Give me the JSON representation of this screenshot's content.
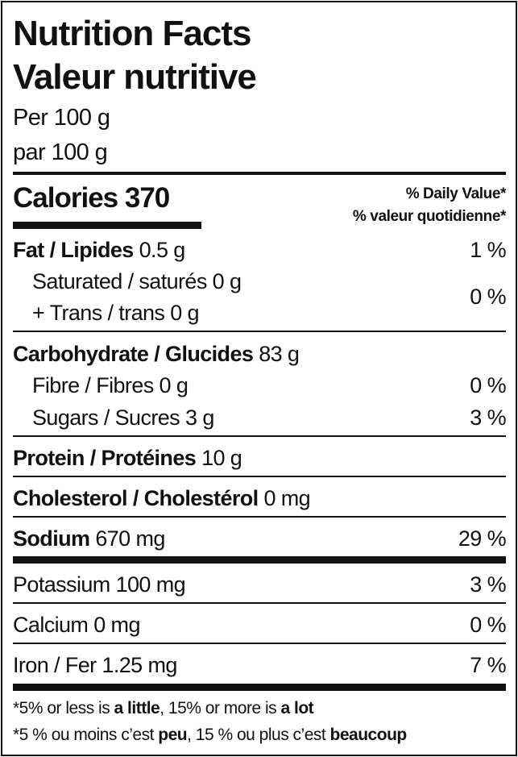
{
  "title_en": "Nutrition Facts",
  "title_fr": "Valeur nutritive",
  "serving_en": "Per 100 g",
  "serving_fr": "par 100 g",
  "calories_label": "Calories",
  "calories_value": "370",
  "dv_en": "% Daily Value*",
  "dv_fr": "% valeur quotidienne*",
  "rows": {
    "fat": {
      "label": "Fat / Lipides",
      "amount": "0.5 g",
      "dv": "1 %"
    },
    "saturated": {
      "label": "Saturated / saturés",
      "amount": "0 g"
    },
    "trans": {
      "label": "+ Trans / trans",
      "amount": "0 g",
      "dv": "0 %"
    },
    "carb": {
      "label": "Carbohydrate / Glucides",
      "amount": "83 g"
    },
    "fibre": {
      "label": "Fibre / Fibres",
      "amount": "0 g",
      "dv": "0 %"
    },
    "sugars": {
      "label": "Sugars / Sucres",
      "amount": "3 g",
      "dv": "3 %"
    },
    "protein": {
      "label": "Protein / Protéines",
      "amount": "10 g"
    },
    "cholesterol": {
      "label": "Cholesterol / Cholestérol",
      "amount": "0 mg"
    },
    "sodium": {
      "label": "Sodium",
      "amount": "670 mg",
      "dv": "29 %"
    },
    "potassium": {
      "label": "Potassium",
      "amount": "100 mg",
      "dv": "3 %"
    },
    "calcium": {
      "label": "Calcium",
      "amount": "0 mg",
      "dv": "0 %"
    },
    "iron": {
      "label": "Iron / Fer",
      "amount": "1.25 mg",
      "dv": "7 %"
    }
  },
  "footnote_en": {
    "a": "*5% or less is ",
    "b": "a little",
    "c": ", 15% or more is ",
    "d": "a lot"
  },
  "footnote_fr": {
    "a": "*5 % ou moins c’est ",
    "b": "peu",
    "c": ", 15 % ou plus c’est ",
    "d": "beaucoup"
  }
}
